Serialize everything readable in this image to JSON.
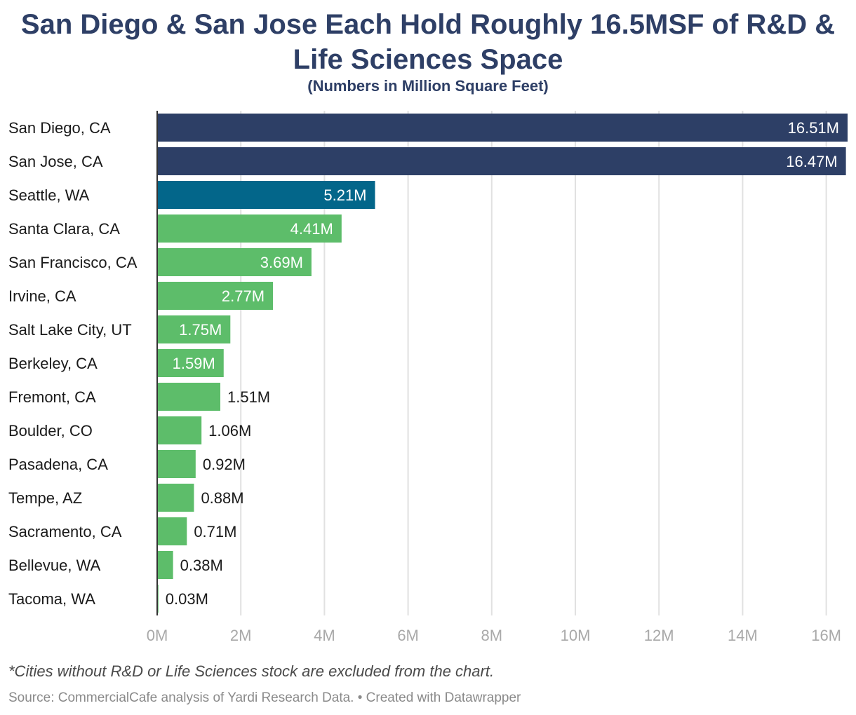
{
  "title": "San Diego & San Jose Each Hold Roughly 16.5MSF of R&D & Life Sciences Space",
  "subtitle": "(Numbers in Million Square Feet)",
  "notes": "*Cities without R&D or Life Sciences stock are excluded from the chart.",
  "source": "Source: CommercialCafe analysis of Yardi Research Data. • Created with Datawrapper",
  "colors": {
    "navy": "#2d3f66",
    "teal": "#03668a",
    "green": "#5dbd6a",
    "grid": "#e1e1e1",
    "tick": "#a9a9a9",
    "axis": "#333333"
  },
  "chart_data": {
    "type": "bar",
    "orientation": "horizontal",
    "categories": [
      "San Diego, CA",
      "San Jose, CA",
      "Seattle, WA",
      "Santa Clara, CA",
      "San Francisco, CA",
      "Irvine, CA",
      "Salt Lake City, UT",
      "Berkeley, CA",
      "Fremont, CA",
      "Boulder, CO",
      "Pasadena, CA",
      "Tempe, AZ",
      "Sacramento, CA",
      "Bellevue, WA",
      "Tacoma, WA"
    ],
    "values": [
      16.51,
      16.47,
      5.21,
      4.41,
      3.69,
      2.77,
      1.75,
      1.59,
      1.51,
      1.06,
      0.92,
      0.88,
      0.71,
      0.38,
      0.03
    ],
    "value_labels": [
      "16.51M",
      "16.47M",
      "5.21M",
      "4.41M",
      "3.69M",
      "2.77M",
      "1.75M",
      "1.59M",
      "1.51M",
      "1.06M",
      "0.92M",
      "0.88M",
      "0.71M",
      "0.38M",
      "0.03M"
    ],
    "bar_colors": [
      "navy",
      "navy",
      "teal",
      "green",
      "green",
      "green",
      "green",
      "green",
      "green",
      "green",
      "green",
      "green",
      "green",
      "green",
      "green"
    ],
    "x_ticks": [
      0,
      2,
      4,
      6,
      8,
      10,
      12,
      14,
      16
    ],
    "x_tick_labels": [
      "0M",
      "2M",
      "4M",
      "6M",
      "8M",
      "10M",
      "12M",
      "14M",
      "16M"
    ],
    "xlim": [
      0,
      16.51
    ],
    "grid": true,
    "legend": false
  }
}
